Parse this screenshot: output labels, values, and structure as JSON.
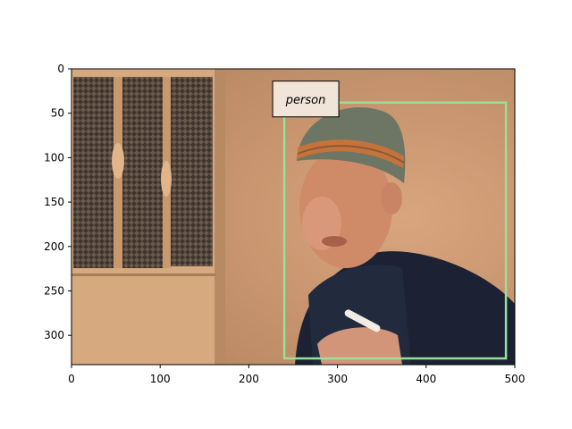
{
  "image": {
    "width": 500,
    "height": 333,
    "palette": {
      "wall": "#c99a72",
      "door": "#d4a47a",
      "mesh": "#4a3f37",
      "hat": "#6f7866",
      "hat_stripe": "#c9763a",
      "skin": "#d49070",
      "jacket": "#1e2436"
    }
  },
  "axes": {
    "xlim": [
      0,
      500
    ],
    "ylim": [
      333,
      0
    ],
    "x_ticks": [
      0,
      100,
      200,
      300,
      400,
      500
    ],
    "y_ticks": [
      0,
      50,
      100,
      150,
      200,
      250,
      300
    ]
  },
  "detections": [
    {
      "label": "person",
      "box": {
        "x1": 240,
        "y1": 38,
        "x2": 490,
        "y2": 326
      },
      "edge_color": "#98e09a",
      "label_bg": "#f1e4d8"
    }
  ]
}
